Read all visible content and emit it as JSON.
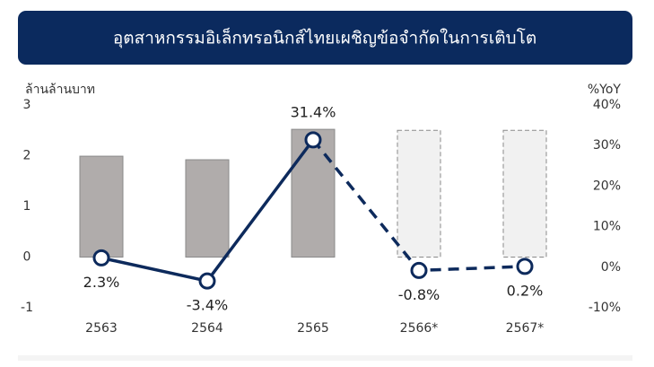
{
  "chart_data": {
    "type": "bar_line",
    "title": "อุตสาหกรรมอิเล็กทรอนิกส์ไทยเผชิญข้อจำกัดในการเติบโต",
    "y_label": "ล้านล้านบาท",
    "y2_label": "%YoY",
    "categories": [
      "2563",
      "2564",
      "2565",
      "2566*",
      "2567*"
    ],
    "projected": [
      false,
      false,
      false,
      true,
      true
    ],
    "ylim": [
      -1,
      3
    ],
    "yticks": [
      -1,
      0,
      1,
      2,
      3
    ],
    "y2lim": [
      -10,
      40
    ],
    "y2ticks": [
      {
        "value": -10,
        "label": "-10%"
      },
      {
        "value": 0,
        "label": "0%"
      },
      {
        "value": 10,
        "label": "10%"
      },
      {
        "value": 20,
        "label": "20%"
      },
      {
        "value": 30,
        "label": "30%"
      },
      {
        "value": 40,
        "label": "40%"
      }
    ],
    "series": [
      {
        "type": "bar",
        "color": "#b0acab",
        "projected_color": "#f1f1f1",
        "values": [
          1.99,
          1.92,
          2.52,
          2.5,
          2.5
        ]
      },
      {
        "type": "line",
        "axis": "y2",
        "color": "#0d2a5c",
        "values": [
          2.3,
          -3.4,
          31.4,
          -0.8,
          0.2
        ],
        "value_labels": [
          "2.3%",
          "-3.4%",
          "31.4%",
          "-0.8%",
          "0.2%"
        ]
      }
    ]
  }
}
